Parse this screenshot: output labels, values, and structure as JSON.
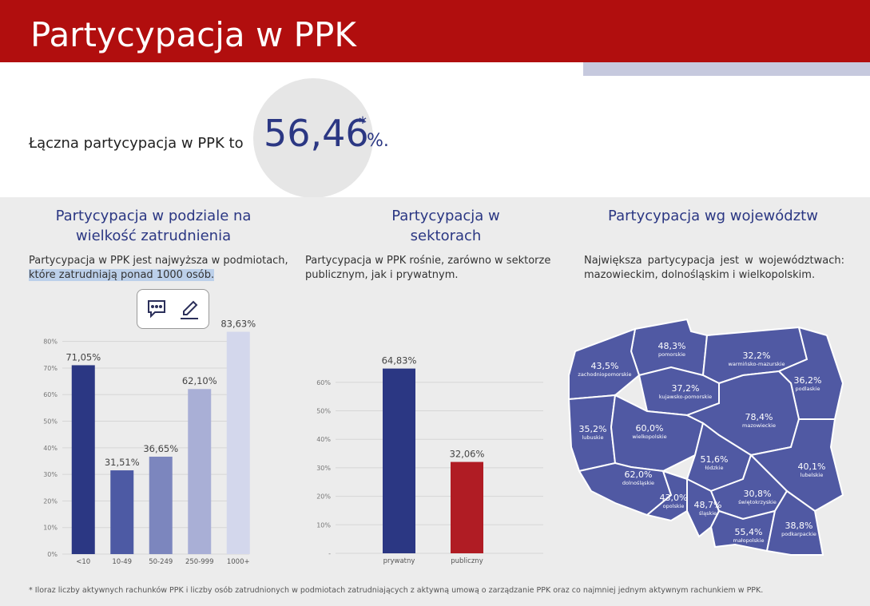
{
  "header": {
    "title": "Partycypacja w PPK"
  },
  "summary": {
    "text": "Łączna partycypacja w PPK to",
    "value": "56,46",
    "asterisk": "*",
    "unit": "%."
  },
  "chart_data": [
    {
      "type": "bar",
      "title": "Partycypacja w podziale na wielkość zatrudnienia",
      "description": "Partycypacja w PPK jest najwyższa w podmiotach,",
      "description_highlight": "które zatrudniają ponad 1000 osób.",
      "categories": [
        "<10",
        "10-49",
        "50-249",
        "250-999",
        "1000+"
      ],
      "values": [
        71.05,
        31.51,
        36.65,
        62.1,
        83.63
      ],
      "value_labels": [
        "71,05%",
        "31,51%",
        "36,65%",
        "62,10%",
        "83,63%"
      ],
      "colors": [
        "#2b3783",
        "#4d5aa4",
        "#7c86be",
        "#a9afd6",
        "#d3d7ec"
      ],
      "ylim": [
        0,
        85
      ],
      "yticks": [
        {
          "value": 0,
          "label": "0%"
        },
        {
          "value": 10,
          "label": "10%"
        },
        {
          "value": 20,
          "label": "20%"
        },
        {
          "value": 30,
          "label": "30%"
        },
        {
          "value": 40,
          "label": "40%"
        },
        {
          "value": 50,
          "label": "50%"
        },
        {
          "value": 60,
          "label": "60%"
        },
        {
          "value": 70,
          "label": "70%"
        },
        {
          "value": 80,
          "label": "80%"
        }
      ],
      "grid": true
    },
    {
      "type": "bar",
      "title": "Partycypacja w sektorach",
      "description": "Partycypacja w PPK rośnie, zarówno w sektorze publicznym, jak i prywatnym.",
      "categories": [
        "prywatny",
        "publiczny"
      ],
      "values": [
        64.83,
        32.06
      ],
      "value_labels": [
        "64,83%",
        "32,06%"
      ],
      "colors": [
        "#2b3783",
        "#b01c24"
      ],
      "ylim": [
        0,
        65
      ],
      "yticks": [
        {
          "value": 0,
          "label": "-"
        },
        {
          "value": 10,
          "label": "10%"
        },
        {
          "value": 20,
          "label": "20%"
        },
        {
          "value": 30,
          "label": "30%"
        },
        {
          "value": 40,
          "label": "40%"
        },
        {
          "value": 50,
          "label": "50%"
        },
        {
          "value": 60,
          "label": "60%"
        }
      ],
      "grid": true
    }
  ],
  "map": {
    "title": "Partycypacja wg województw",
    "description": "Największa partycypacja jest w województwach: mazowieckim, dolnośląskim i wielkopolskim.",
    "regions": [
      {
        "value": "48,3%",
        "name": "pomorskie"
      },
      {
        "value": "43,5%",
        "name": "zachodniopomorskie"
      },
      {
        "value": "32,2%",
        "name": "warmińsko-mazurskie"
      },
      {
        "value": "36,2%",
        "name": "podlaskie"
      },
      {
        "value": "37,2%",
        "name": "kujawsko-pomorskie"
      },
      {
        "value": "35,2%",
        "name": "lubuskie"
      },
      {
        "value": "60,0%",
        "name": "wielkopolskie"
      },
      {
        "value": "78,4%",
        "name": "mazowieckie"
      },
      {
        "value": "51,6%",
        "name": "łódzkie"
      },
      {
        "value": "40,1%",
        "name": "lubelskie"
      },
      {
        "value": "62,0%",
        "name": "dolnośląskie"
      },
      {
        "value": "43,0%",
        "name": "opolskie"
      },
      {
        "value": "48,7%",
        "name": "śląskie"
      },
      {
        "value": "30,8%",
        "name": "świętokrzyskie"
      },
      {
        "value": "55,4%",
        "name": "małopolskie"
      },
      {
        "value": "38,8%",
        "name": "podkarpackie"
      }
    ]
  },
  "footnote": "* Iloraz liczby aktywnych rachunków PPK i liczby osób zatrudnionych w podmiotach zatrudniających z aktywną umową o zarządzanie PPK oraz co najmniej jednym aktywnym rachunkiem w PPK."
}
